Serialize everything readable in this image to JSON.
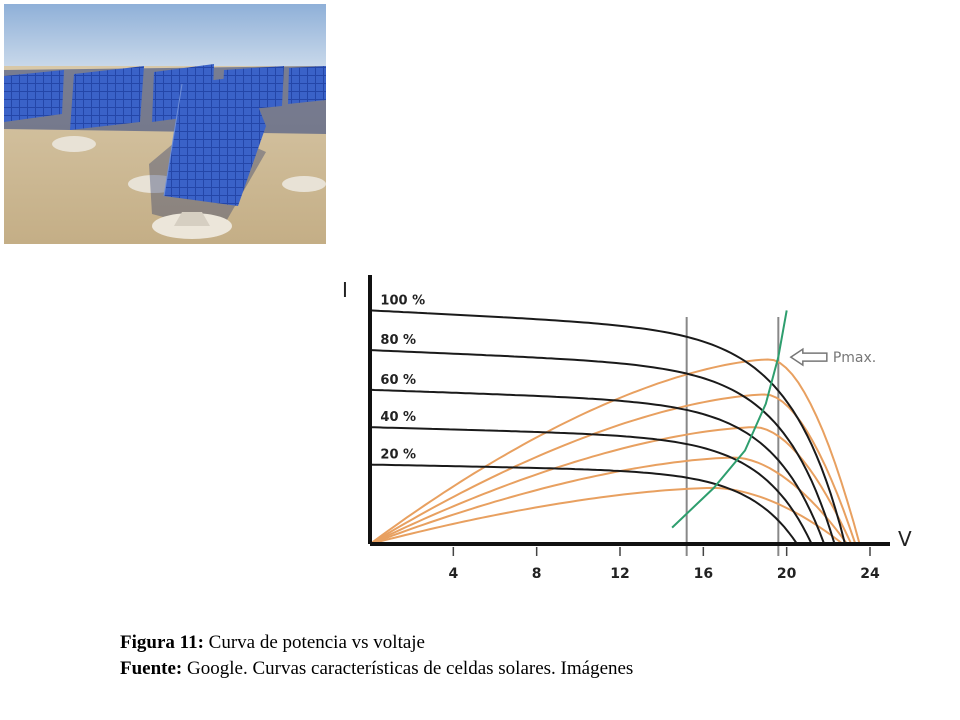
{
  "photo": {
    "icon": "solar-panel-field-photo"
  },
  "chart_data": {
    "type": "line",
    "xlabel": "V",
    "ylabel": "I",
    "xlim": [
      0,
      24
    ],
    "ylim": [
      0,
      1.1
    ],
    "x_ticks": [
      "4",
      "8",
      "12",
      "16",
      "20",
      "24"
    ],
    "grid": false,
    "reference_lines_v": [
      15.2,
      19.6
    ],
    "irradiance_labels": [
      "100 %",
      "80 %",
      "60 %",
      "40 %",
      "20 %"
    ],
    "current_curves": [
      {
        "label": "100 %",
        "isc": 1.0,
        "voc": 22.8
      },
      {
        "label": "80 %",
        "isc": 0.83,
        "voc": 22.3
      },
      {
        "label": "60 %",
        "isc": 0.66,
        "voc": 21.8
      },
      {
        "label": "40 %",
        "isc": 0.5,
        "voc": 21.2
      },
      {
        "label": "20 %",
        "isc": 0.34,
        "voc": 20.5
      }
    ],
    "power_curves": [
      {
        "peak_v": 19.2,
        "peak_p": 0.79,
        "voc": 23.5
      },
      {
        "peak_v": 19.0,
        "peak_p": 0.64,
        "voc": 23.3
      },
      {
        "peak_v": 18.5,
        "peak_p": 0.5,
        "voc": 23.1
      },
      {
        "peak_v": 17.5,
        "peak_p": 0.37,
        "voc": 22.9
      },
      {
        "peak_v": 16.5,
        "peak_p": 0.24,
        "voc": 22.7
      }
    ],
    "mpp_line": {
      "v": [
        14.5,
        16.5,
        18.0,
        19.0,
        19.6,
        20.0
      ],
      "p": [
        0.07,
        0.24,
        0.4,
        0.6,
        0.8,
        1.0
      ]
    },
    "annotation": "Pmax.",
    "colors": {
      "current": "#1a1a1a",
      "power": "#e8a060",
      "mpp": "#2e9e6e",
      "reference": "#888888"
    }
  },
  "caption": {
    "line1_label": "Figura 11:",
    "line1_text": " Curva de potencia vs voltaje",
    "line2_label": "Fuente:",
    "line2_text": " Google. Curvas características de celdas solares. Imágenes"
  }
}
